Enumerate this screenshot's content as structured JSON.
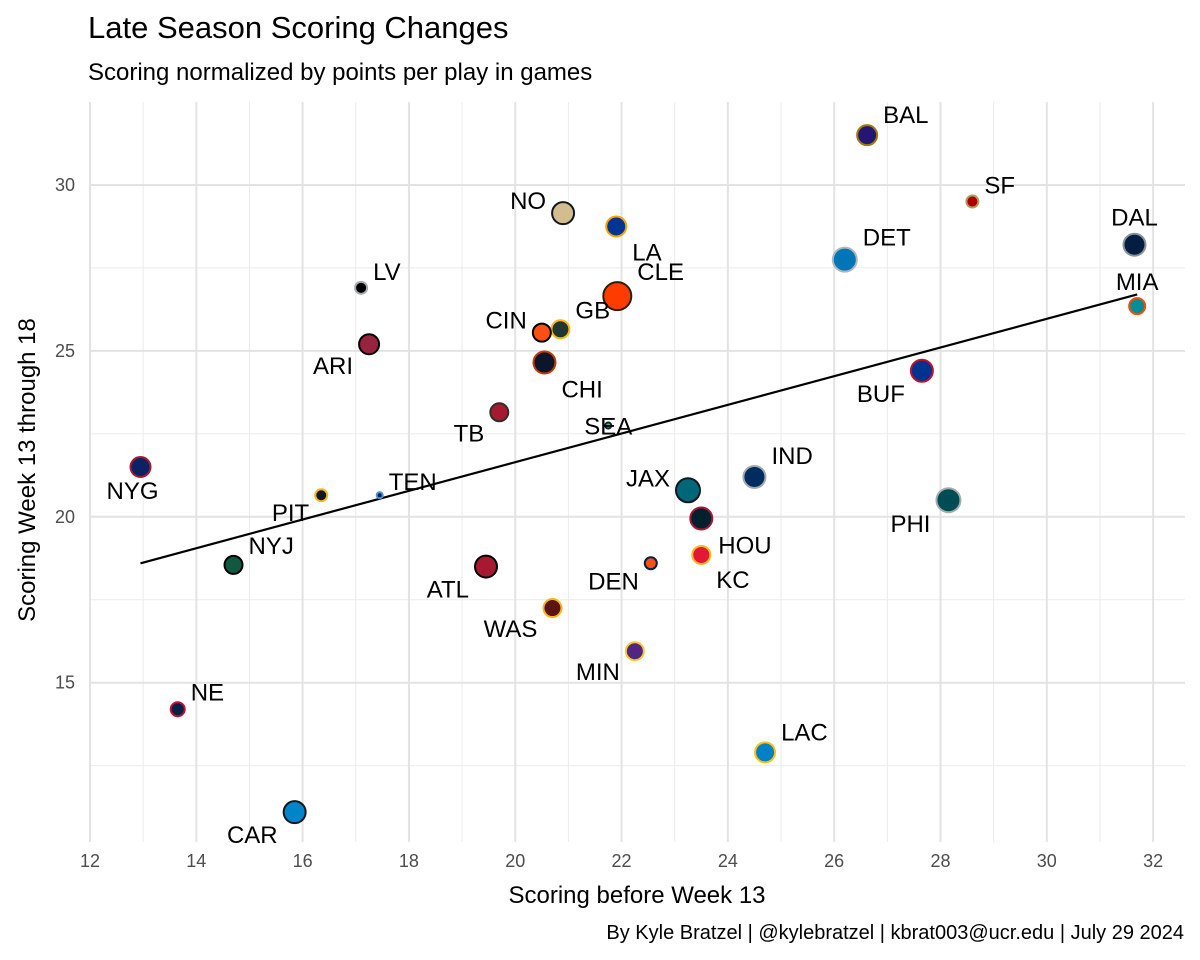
{
  "chart_data": {
    "type": "scatter",
    "title": "Late Season Scoring Changes",
    "subtitle": "Scoring normalized by points per play in games",
    "xlabel": "Scoring before Week 13",
    "ylabel": "Scoring Week 13 through 18",
    "caption": "By Kyle Bratzel | @kylebratzel | kbrat003@ucr.edu | July 29 2024",
    "xlim": [
      12,
      32.6
    ],
    "ylim": [
      10.2,
      32.5
    ],
    "x_ticks": [
      12,
      14,
      16,
      18,
      20,
      22,
      24,
      26,
      28,
      30,
      32
    ],
    "y_ticks": [
      15,
      20,
      25,
      30
    ],
    "grid": true,
    "trend_line": {
      "x": [
        12.95,
        31.7
      ],
      "y": [
        18.6,
        26.7
      ]
    },
    "points": [
      {
        "team": "BAL",
        "x": 26.62,
        "y": 31.5,
        "size": 10,
        "fill": "#241773",
        "stroke": "#9E7C0C",
        "label_side": "right"
      },
      {
        "team": "SF",
        "x": 28.6,
        "y": 29.5,
        "size": 6,
        "fill": "#AA0000",
        "stroke": "#B3995D",
        "label_side": "right"
      },
      {
        "team": "DAL",
        "x": 31.65,
        "y": 28.2,
        "size": 11,
        "fill": "#041E42",
        "stroke": "#869397",
        "label_side": "above"
      },
      {
        "team": "MIA",
        "x": 31.7,
        "y": 26.35,
        "size": 8,
        "fill": "#008E97",
        "stroke": "#FC4C02",
        "label_side": "above"
      },
      {
        "team": "DET",
        "x": 26.2,
        "y": 27.75,
        "size": 12,
        "fill": "#0076B6",
        "stroke": "#B0B7BC",
        "label_side": "right"
      },
      {
        "team": "NO",
        "x": 20.9,
        "y": 29.15,
        "size": 11,
        "fill": "#D3BC8D",
        "stroke": "#101820",
        "label_side": "left"
      },
      {
        "team": "LA",
        "x": 21.9,
        "y": 28.75,
        "size": 10,
        "fill": "#003594",
        "stroke": "#FFA300",
        "label_side": "right-below"
      },
      {
        "team": "CLE",
        "x": 21.92,
        "y": 26.65,
        "size": 14,
        "fill": "#FF3C00",
        "stroke": "#311D00",
        "label_side": "right"
      },
      {
        "team": "LV",
        "x": 17.1,
        "y": 26.9,
        "size": 6,
        "fill": "#000000",
        "stroke": "#A5ACAF",
        "label_side": "right"
      },
      {
        "team": "ARI",
        "x": 17.25,
        "y": 25.2,
        "size": 10,
        "fill": "#97233F",
        "stroke": "#000000",
        "label_side": "left-below"
      },
      {
        "team": "GB",
        "x": 20.85,
        "y": 25.65,
        "size": 9,
        "fill": "#203731",
        "stroke": "#FFB612",
        "label_side": "right"
      },
      {
        "team": "CIN",
        "x": 20.5,
        "y": 25.55,
        "size": 9,
        "fill": "#FB4F14",
        "stroke": "#000000",
        "label_side": "left"
      },
      {
        "team": "CHI",
        "x": 20.55,
        "y": 24.65,
        "size": 11,
        "fill": "#0B162A",
        "stroke": "#C83803",
        "label_side": "right-below"
      },
      {
        "team": "BUF",
        "x": 27.65,
        "y": 24.4,
        "size": 11,
        "fill": "#00338D",
        "stroke": "#C60C30",
        "label_side": "left-below"
      },
      {
        "team": "TB",
        "x": 19.7,
        "y": 23.15,
        "size": 9,
        "fill": "#A71930",
        "stroke": "#322F2B",
        "label_side": "left-below"
      },
      {
        "team": "SEA",
        "x": 21.75,
        "y": 22.75,
        "size": 3,
        "fill": "#69BE28",
        "stroke": "#002244",
        "label_side": "center"
      },
      {
        "team": "NYG",
        "x": 12.95,
        "y": 21.5,
        "size": 10,
        "fill": "#0B2265",
        "stroke": "#A71930",
        "label_side": "below"
      },
      {
        "team": "IND",
        "x": 24.5,
        "y": 21.2,
        "size": 11,
        "fill": "#002C5F",
        "stroke": "#A2AAAD",
        "label_side": "right"
      },
      {
        "team": "JAX",
        "x": 23.25,
        "y": 20.8,
        "size": 12,
        "fill": "#006778",
        "stroke": "#101820",
        "label_side": "left"
      },
      {
        "team": "TEN",
        "x": 17.45,
        "y": 20.65,
        "size": 3,
        "fill": "#0C2340",
        "stroke": "#4B92DB",
        "label_side": "right"
      },
      {
        "team": "PIT",
        "x": 16.35,
        "y": 20.65,
        "size": 6,
        "fill": "#101820",
        "stroke": "#FFB612",
        "label_side": "left-below"
      },
      {
        "team": "PHI",
        "x": 28.15,
        "y": 20.5,
        "size": 12,
        "fill": "#004C54",
        "stroke": "#A5ACAF",
        "label_side": "left-below"
      },
      {
        "team": "HOU",
        "x": 23.5,
        "y": 19.95,
        "size": 11,
        "fill": "#03202F",
        "stroke": "#A71930",
        "label_side": "right-below"
      },
      {
        "team": "KC",
        "x": 23.5,
        "y": 18.85,
        "size": 9,
        "fill": "#E31837",
        "stroke": "#FFB81C",
        "label_side": "right-below"
      },
      {
        "team": "DEN",
        "x": 22.55,
        "y": 18.6,
        "size": 6,
        "fill": "#FB4F14",
        "stroke": "#002244",
        "label_side": "left-below"
      },
      {
        "team": "NYJ",
        "x": 14.7,
        "y": 18.55,
        "size": 9,
        "fill": "#125740",
        "stroke": "#000000",
        "label_side": "right"
      },
      {
        "team": "ATL",
        "x": 19.45,
        "y": 18.5,
        "size": 11,
        "fill": "#A71930",
        "stroke": "#000000",
        "label_side": "left-below"
      },
      {
        "team": "WAS",
        "x": 20.7,
        "y": 17.25,
        "size": 9,
        "fill": "#5A1414",
        "stroke": "#FFB612",
        "label_side": "left-below"
      },
      {
        "team": "MIN",
        "x": 22.25,
        "y": 15.95,
        "size": 9,
        "fill": "#4F2683",
        "stroke": "#FFC62F",
        "label_side": "left-below"
      },
      {
        "team": "NE",
        "x": 13.65,
        "y": 14.2,
        "size": 7,
        "fill": "#002244",
        "stroke": "#C60C30",
        "label_side": "right"
      },
      {
        "team": "LAC",
        "x": 24.7,
        "y": 12.9,
        "size": 10,
        "fill": "#0080C6",
        "stroke": "#FFC20E",
        "label_side": "right"
      },
      {
        "team": "CAR",
        "x": 15.85,
        "y": 11.1,
        "size": 11,
        "fill": "#0085CA",
        "stroke": "#101820",
        "label_side": "left-below"
      }
    ]
  }
}
